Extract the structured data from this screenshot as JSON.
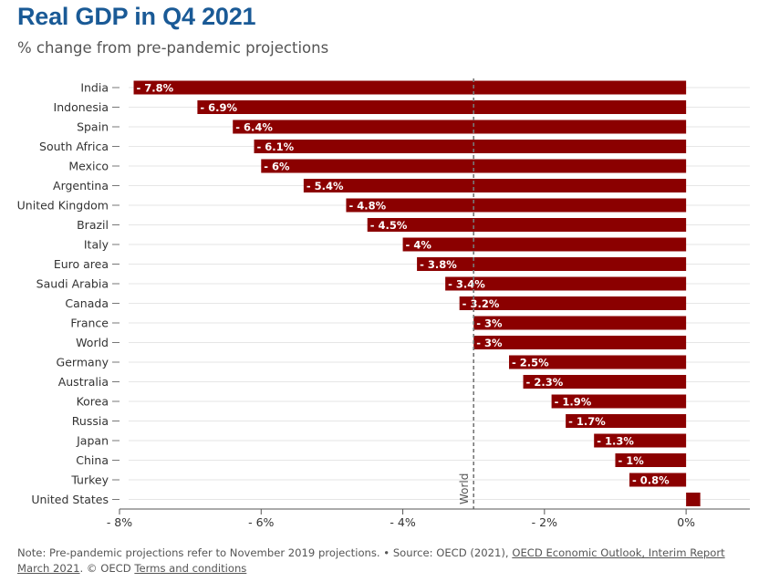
{
  "header": {
    "title": "Real GDP in Q4 2021",
    "subtitle": "% change from pre-pandemic projections"
  },
  "chart_data": {
    "type": "bar",
    "orientation": "horizontal",
    "categories": [
      "India",
      "Indonesia",
      "Spain",
      "South Africa",
      "Mexico",
      "Argentina",
      "United Kingdom",
      "Brazil",
      "Italy",
      "Euro area",
      "Saudi Arabia",
      "Canada",
      "France",
      "World",
      "Germany",
      "Australia",
      "Korea",
      "Russia",
      "Japan",
      "China",
      "Turkey",
      "United States"
    ],
    "values": [
      -7.8,
      -6.9,
      -6.4,
      -6.1,
      -6,
      -5.4,
      -4.8,
      -4.5,
      -4,
      -3.8,
      -3.4,
      -3.2,
      -3,
      -3,
      -2.5,
      -2.3,
      -1.9,
      -1.7,
      -1.3,
      -1,
      -0.8,
      0.2
    ],
    "data_labels": [
      "- 7.8%",
      "- 6.9%",
      "- 6.4%",
      "- 6.1%",
      "- 6%",
      "- 5.4%",
      "- 4.8%",
      "- 4.5%",
      "- 4%",
      "- 3.8%",
      "- 3.4%",
      "- 3.2%",
      "- 3%",
      "- 3%",
      "- 2.5%",
      "- 2.3%",
      "- 1.9%",
      "- 1.7%",
      "- 1.3%",
      "- 1%",
      "- 0.8%",
      ""
    ],
    "xlim": [
      -8,
      0.9
    ],
    "x_ticks": [
      -8,
      -6,
      -4,
      -2,
      0
    ],
    "x_tick_labels": [
      "- 8%",
      "- 6%",
      "- 4%",
      "- 2%",
      "0%"
    ],
    "reference_line": {
      "value": -3,
      "label": "World"
    },
    "bar_color": "#8b0000",
    "grid": true
  },
  "footer": {
    "note": "Note: Pre-pandemic projections refer to November 2019 projections. • Source: OECD (2021), ",
    "source_link": "OECD Economic Outlook, Interim Report March 2021",
    "copyright": ". © OECD ",
    "terms_link": "Terms and conditions"
  }
}
